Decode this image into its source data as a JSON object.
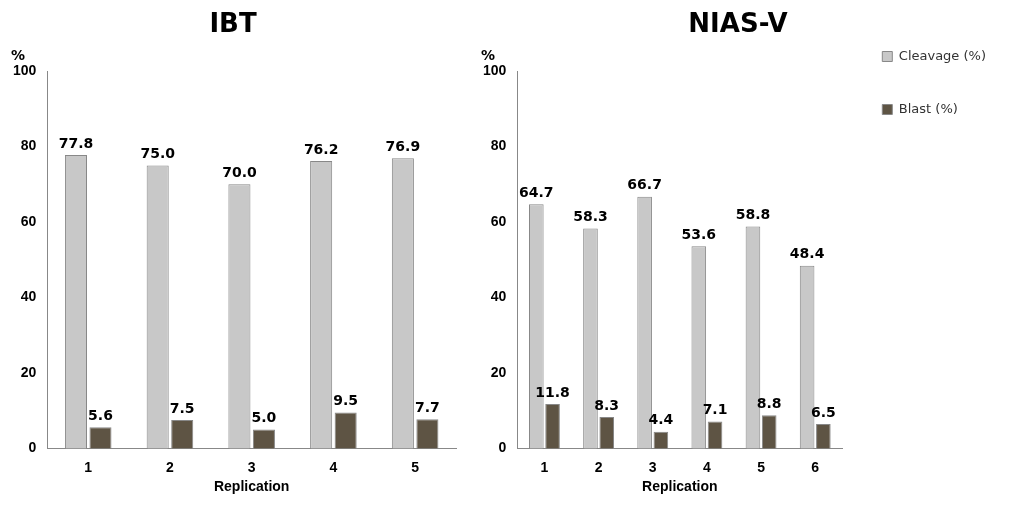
{
  "chart_data": [
    {
      "type": "bar",
      "title": "IBT",
      "ylabel": "%",
      "xlabel": "Replication",
      "categories": [
        "1",
        "2",
        "3",
        "4",
        "5"
      ],
      "ylim": [
        0,
        100
      ],
      "yticks": [
        0,
        20,
        40,
        60,
        80,
        100
      ],
      "grid": false,
      "legend": false,
      "series": [
        {
          "color": "#c8c8c8",
          "values": [
            77.8,
            75.0,
            70.0,
            76.2,
            76.9
          ],
          "value_labels": [
            "77.8",
            "75.0",
            "70.0",
            "76.2",
            "76.9"
          ]
        },
        {
          "color": "#5e5444",
          "values": [
            5.6,
            7.5,
            5.0,
            9.5,
            7.7
          ],
          "value_labels": [
            "5.6",
            "7.5",
            "5.0",
            "9.5",
            "7.7"
          ]
        }
      ]
    },
    {
      "type": "bar",
      "title": "NIAS-V",
      "ylabel": "%",
      "xlabel": "Replication",
      "categories": [
        "1",
        "2",
        "3",
        "4",
        "5",
        "6"
      ],
      "ylim": [
        0,
        100
      ],
      "yticks": [
        0,
        20,
        40,
        60,
        80,
        100
      ],
      "grid": false,
      "legend": "top right",
      "series": [
        {
          "name": "Cleavage (%)",
          "color": "#c8c8c8",
          "values": [
            64.7,
            58.3,
            66.7,
            53.6,
            58.8,
            48.4
          ],
          "value_labels": [
            "64.7",
            "58.3",
            "66.7",
            "53.6",
            "58.8",
            "48.4"
          ]
        },
        {
          "name": "Blast (%)",
          "color": "#5e5444",
          "values": [
            11.8,
            8.3,
            4.4,
            7.1,
            8.8,
            6.5
          ],
          "value_labels": [
            "11.8",
            "8.3",
            "4.4",
            "7.1",
            "8.8",
            "6.5"
          ]
        }
      ]
    }
  ]
}
